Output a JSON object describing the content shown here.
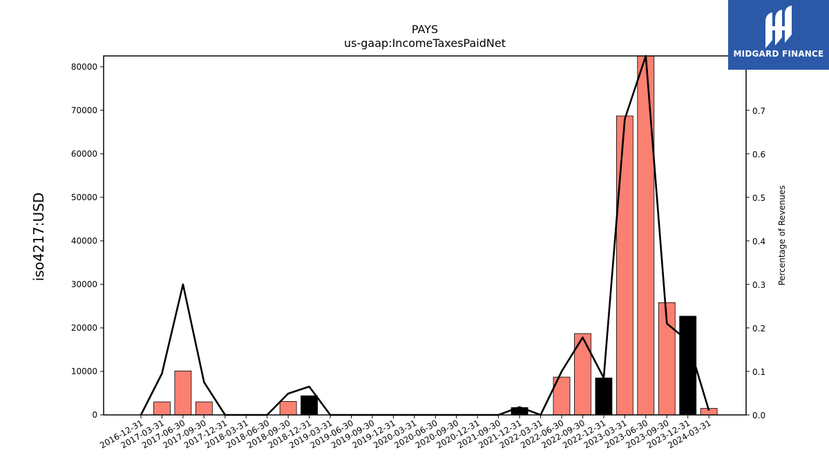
{
  "chart_data": {
    "type": "bar",
    "title": "PAYS",
    "subtitle": "us-gaap:IncomeTaxesPaidNet",
    "ylabel": "iso4217:USD",
    "ylabel_right": "Percentage of Revenues",
    "ylim": [
      0,
      82500
    ],
    "ylim_right": [
      0.0,
      0.825
    ],
    "yticks": [
      0,
      10000,
      20000,
      30000,
      40000,
      50000,
      60000,
      70000,
      80000
    ],
    "yticks_right": [
      "0.0",
      "0.1",
      "0.2",
      "0.3",
      "0.4",
      "0.5",
      "0.6",
      "0.7"
    ],
    "grid": false,
    "categories": [
      "2016-12-31",
      "2017-03-31",
      "2017-06-30",
      "2017-09-30",
      "2017-12-31",
      "2018-03-31",
      "2018-06-30",
      "2018-09-30",
      "2018-12-31",
      "2019-03-31",
      "2019-06-30",
      "2019-09-30",
      "2019-12-31",
      "2020-03-31",
      "2020-06-30",
      "2020-09-30",
      "2020-12-31",
      "2021-09-30",
      "2021-12-31",
      "2022-03-31",
      "2022-06-30",
      "2022-09-30",
      "2022-12-31",
      "2023-03-31",
      "2023-06-30",
      "2023-09-30",
      "2023-12-31",
      "2024-03-31"
    ],
    "series": [
      {
        "kind": "bar",
        "values": [
          0,
          3000,
          10100,
          3000,
          0,
          0,
          0,
          3100,
          4400,
          0,
          0,
          0,
          0,
          0,
          0,
          0,
          0,
          0,
          1700,
          0,
          8700,
          18700,
          8500,
          68700,
          83000,
          25800,
          22700,
          1500
        ],
        "bar_colors": [
          "#fa8072",
          "#fa8072",
          "#fa8072",
          "#fa8072",
          "#fa8072",
          "#fa8072",
          "#fa8072",
          "#fa8072",
          "#000000",
          "#fa8072",
          "#fa8072",
          "#fa8072",
          "#fa8072",
          "#fa8072",
          "#fa8072",
          "#fa8072",
          "#fa8072",
          "#fa8072",
          "#000000",
          "#fa8072",
          "#fa8072",
          "#fa8072",
          "#000000",
          "#fa8072",
          "#fa8072",
          "#fa8072",
          "#000000",
          "#fa8072"
        ]
      },
      {
        "kind": "line",
        "axis": "right",
        "color": "#000000",
        "values": [
          0.0,
          0.095,
          0.3,
          0.075,
          0.0,
          0.0,
          0.0,
          0.049,
          0.065,
          0.0,
          0.0,
          0.0,
          0.0,
          0.0,
          0.0,
          0.0,
          0.0,
          0.0,
          0.018,
          0.0,
          0.1,
          0.178,
          0.085,
          0.68,
          0.83,
          0.21,
          0.17,
          0.01
        ]
      }
    ]
  },
  "brand": {
    "name": "MIDGARD FINANCE",
    "color": "#2b59a8"
  }
}
